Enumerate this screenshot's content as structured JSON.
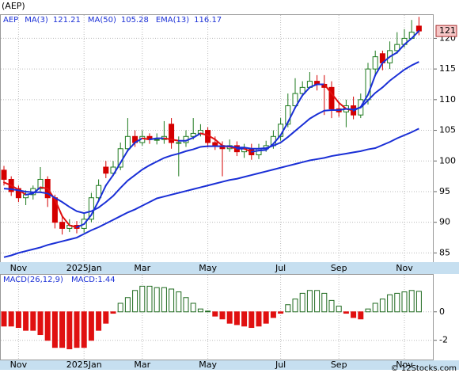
{
  "chart_data": [
    {
      "type": "candlestick",
      "title": "(AEP)",
      "symbol": "AEP",
      "categories": [
        null,
        null,
        "Nov",
        null,
        null,
        null,
        null,
        null,
        null,
        null,
        null,
        "2025Jan",
        null,
        null,
        null,
        null,
        null,
        null,
        null,
        "Mar",
        null,
        null,
        null,
        null,
        null,
        null,
        null,
        null,
        "May",
        null,
        null,
        null,
        null,
        null,
        null,
        null,
        null,
        null,
        "Jul",
        null,
        null,
        null,
        null,
        null,
        null,
        null,
        "Sep",
        null,
        null,
        null,
        null,
        null,
        null,
        null,
        null,
        "Nov",
        null,
        null
      ],
      "open": [
        98.5,
        97,
        95.5,
        94,
        94.5,
        95.5,
        97,
        94,
        90,
        89,
        89.5,
        89,
        90.5,
        94,
        99,
        98,
        99,
        102,
        104,
        103,
        104,
        103.5,
        103.5,
        106,
        103,
        103,
        104,
        104.5,
        105,
        103,
        102.5,
        102,
        102.5,
        101.5,
        102,
        101,
        102,
        102.5,
        104,
        106,
        109,
        111,
        112,
        113,
        112.5,
        112,
        108.5,
        108,
        109,
        107.5,
        110,
        115,
        117.5,
        116,
        118,
        119,
        120,
        122
      ],
      "high": [
        99.2,
        97.5,
        96,
        95.2,
        96,
        99,
        97.5,
        94.5,
        91,
        90.5,
        90.2,
        91.5,
        94.8,
        97,
        100,
        100,
        103,
        107,
        105,
        105,
        104.5,
        104.5,
        106.5,
        107,
        104,
        105,
        107,
        106,
        105.5,
        104,
        103.2,
        103.5,
        103.2,
        102.8,
        102.8,
        102.8,
        103.3,
        105,
        107,
        111,
        113.5,
        113,
        114.5,
        114,
        114,
        113,
        109.5,
        110,
        110.5,
        111,
        116,
        118,
        118,
        119.5,
        121,
        121.5,
        123,
        123.5
      ],
      "low": [
        96,
        94.3,
        93.3,
        92.8,
        93.7,
        94.8,
        92.5,
        89,
        88,
        88.4,
        88.2,
        88.3,
        90,
        93.5,
        97.2,
        97.5,
        98.5,
        101.5,
        102.3,
        102.5,
        102.8,
        102.7,
        102.8,
        102,
        97.5,
        102.3,
        103.5,
        104,
        102.2,
        101.8,
        97.5,
        101.5,
        100.8,
        100.5,
        100.2,
        100.3,
        101.5,
        102,
        103.3,
        105.5,
        108.5,
        110.5,
        111.8,
        111.5,
        107.5,
        107,
        107.2,
        105.5,
        106.8,
        107,
        109.2,
        114,
        114.8,
        115,
        117.5,
        118.5,
        120,
        120.5
      ],
      "close": [
        97,
        95,
        94,
        94.5,
        95.5,
        97,
        94,
        90,
        89,
        89.5,
        89,
        90.5,
        94,
        96,
        98,
        99,
        102,
        104,
        103,
        104,
        103.5,
        103.5,
        104,
        103,
        103,
        104,
        104.5,
        105,
        103,
        102.5,
        102,
        102.5,
        101.5,
        102,
        101,
        102,
        102.5,
        104,
        106,
        109,
        111,
        112,
        113,
        112.5,
        112,
        108.5,
        108,
        109,
        107.5,
        110,
        115,
        117,
        116,
        118,
        119,
        120,
        121,
        121.2
      ],
      "up_color": "#1e7a1e",
      "down_color": "#d40000",
      "series": [
        {
          "name": "MA(3)",
          "color": "#1a2fd6",
          "down_color": "#e01010",
          "last": 121.21,
          "values": [
            96.5,
            96,
            95.3,
            94.5,
            94.7,
            95.7,
            95.5,
            93.7,
            91,
            89.5,
            89.2,
            89.7,
            91.2,
            93.5,
            96,
            97.7,
            99.7,
            101.7,
            103,
            103.7,
            103.5,
            103.7,
            103.7,
            103.5,
            103.3,
            103.3,
            103.8,
            104.5,
            104.2,
            103.5,
            102.5,
            102.3,
            102,
            102,
            101.5,
            101.7,
            101.8,
            102.8,
            104.2,
            106.3,
            108.7,
            110.7,
            112,
            112.5,
            112.5,
            111,
            109.5,
            108.5,
            108.2,
            108.8,
            110.8,
            114,
            116,
            117,
            117.7,
            119,
            120,
            121.21
          ]
        },
        {
          "name": "MA(50)",
          "color": "#1a2fd6",
          "last": 105.28,
          "values": [
            84.3,
            84.6,
            85.0,
            85.3,
            85.6,
            85.9,
            86.3,
            86.6,
            86.9,
            87.2,
            87.5,
            88.1,
            88.7,
            89.2,
            89.8,
            90.4,
            91.0,
            91.6,
            92.1,
            92.7,
            93.3,
            93.9,
            94.2,
            94.5,
            94.8,
            95.1,
            95.4,
            95.7,
            96.0,
            96.3,
            96.6,
            96.9,
            97.1,
            97.4,
            97.7,
            98.0,
            98.3,
            98.6,
            98.9,
            99.2,
            99.5,
            99.8,
            100.1,
            100.3,
            100.5,
            100.8,
            101.0,
            101.2,
            101.4,
            101.6,
            101.9,
            102.1,
            102.6,
            103.1,
            103.7,
            104.2,
            104.7,
            105.28
          ]
        },
        {
          "name": "EMA(13)",
          "color": "#1a2fd6",
          "last": 116.17,
          "values": [
            95.5,
            95.4,
            95.2,
            95.0,
            94.9,
            94.9,
            94.7,
            94.0,
            93.3,
            92.5,
            91.8,
            91.5,
            91.8,
            92.4,
            93.3,
            94.3,
            95.6,
            96.8,
            97.7,
            98.6,
            99.3,
            99.9,
            100.5,
            100.9,
            101.2,
            101.6,
            101.9,
            102.3,
            102.4,
            102.4,
            102.4,
            102.4,
            102.2,
            102.2,
            102.0,
            102.0,
            102.1,
            102.5,
            103.0,
            103.9,
            104.9,
            105.9,
            106.9,
            107.6,
            108.2,
            108.3,
            108.3,
            108.5,
            108.4,
            108.7,
            109.9,
            111.1,
            112.0,
            113.1,
            114.0,
            114.9,
            115.6,
            116.17
          ]
        }
      ],
      "last_label": "121",
      "ylim": [
        83.5,
        123.8
      ],
      "yticks": [
        85,
        90,
        95,
        100,
        105,
        110,
        115,
        120
      ],
      "grid": true
    },
    {
      "type": "bar",
      "title": "MACD(26,12,9)",
      "legend_label": "MACD:",
      "legend_value": 1.44,
      "categories": [
        null,
        null,
        "Nov",
        null,
        null,
        null,
        null,
        null,
        null,
        null,
        null,
        "2025Jan",
        null,
        null,
        null,
        null,
        null,
        null,
        null,
        "Mar",
        null,
        null,
        null,
        null,
        null,
        null,
        null,
        null,
        "May",
        null,
        null,
        null,
        null,
        null,
        null,
        null,
        null,
        null,
        "Jul",
        null,
        null,
        null,
        null,
        null,
        null,
        null,
        "Sep",
        null,
        null,
        null,
        null,
        null,
        null,
        null,
        null,
        "Nov",
        null,
        null
      ],
      "values": [
        -1.0,
        -1.0,
        -1.1,
        -1.3,
        -1.3,
        -1.6,
        -2.0,
        -2.5,
        -2.5,
        -2.6,
        -2.5,
        -2.5,
        -2.0,
        -1.3,
        -0.8,
        -0.1,
        0.6,
        1.0,
        1.5,
        1.8,
        1.8,
        1.7,
        1.7,
        1.6,
        1.4,
        1.0,
        0.6,
        0.2,
        0.05,
        -0.3,
        -0.5,
        -0.8,
        -0.9,
        -1.0,
        -1.1,
        -1.0,
        -0.8,
        -0.4,
        -0.1,
        0.5,
        0.9,
        1.3,
        1.5,
        1.5,
        1.3,
        0.8,
        0.4,
        -0.1,
        -0.4,
        -0.5,
        0.2,
        0.6,
        0.9,
        1.2,
        1.3,
        1.4,
        1.5,
        1.44
      ],
      "up_color": "#1e6a1e",
      "down_color": "#e01010",
      "ylim": [
        -3.35,
        2.6
      ],
      "yticks": [
        -2,
        0
      ],
      "grid": true
    }
  ],
  "footer": "© 12Stocks.com"
}
